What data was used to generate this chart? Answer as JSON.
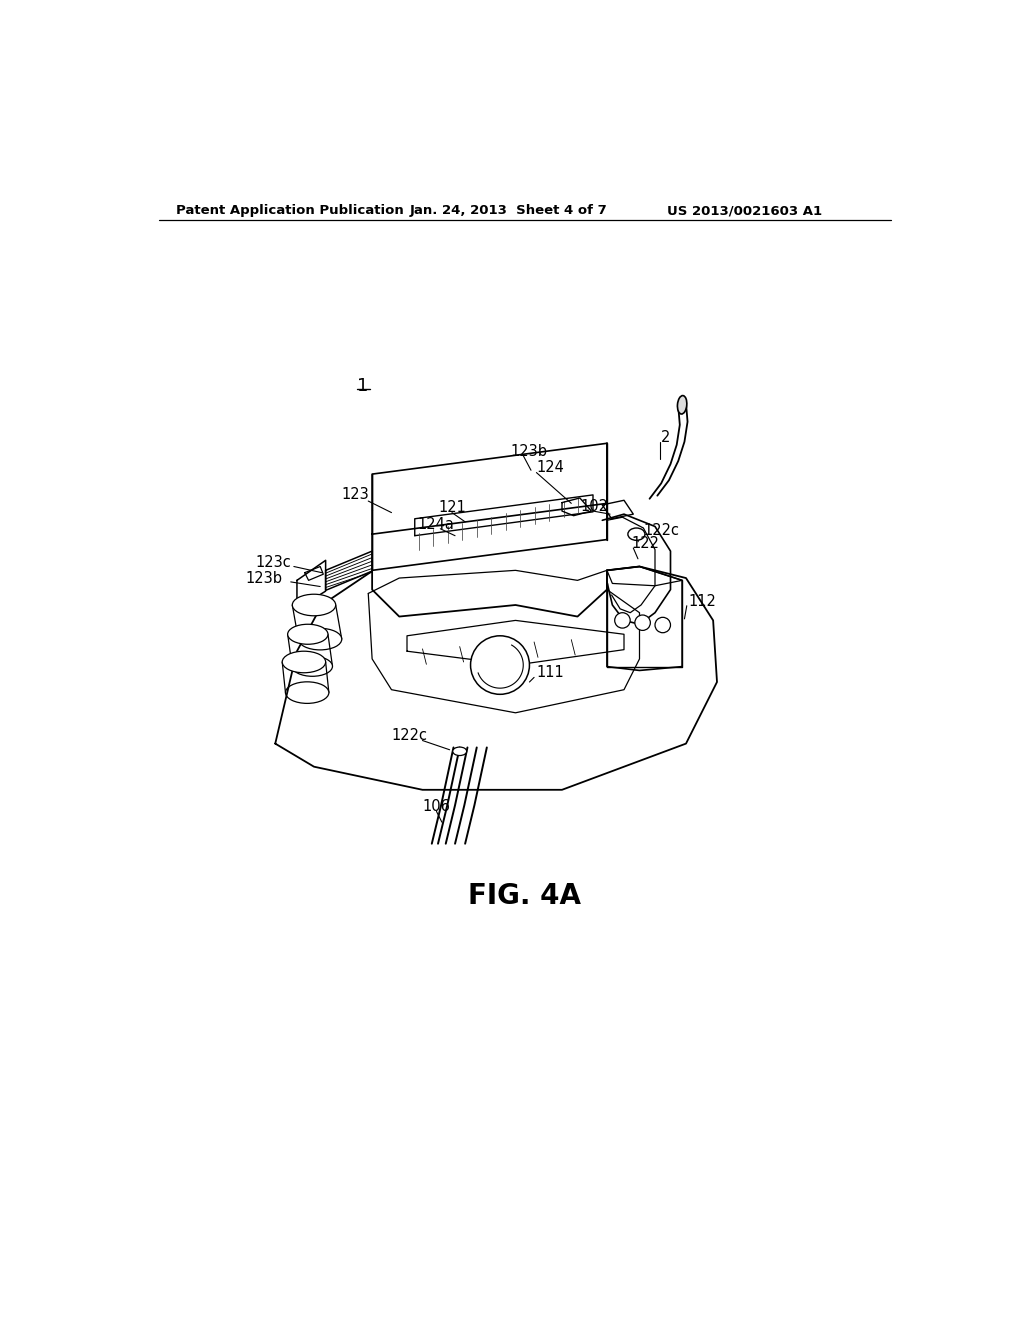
{
  "bg_color": "#ffffff",
  "header_left": "Patent Application Publication",
  "header_center": "Jan. 24, 2013  Sheet 4 of 7",
  "header_right": "US 2013/0021603 A1",
  "fig_label": "FIG. 4A",
  "label_1": "1",
  "label_2": "2",
  "label_102": "102",
  "label_106": "106",
  "label_111": "111",
  "label_112": "112",
  "label_121": "121",
  "label_122": "122",
  "label_122c_top": "122c",
  "label_122c_bot": "122c",
  "label_123": "123",
  "label_123b_top": "123b",
  "label_123b_left": "123b",
  "label_123c": "123c",
  "label_124": "124",
  "label_124a": "124a"
}
